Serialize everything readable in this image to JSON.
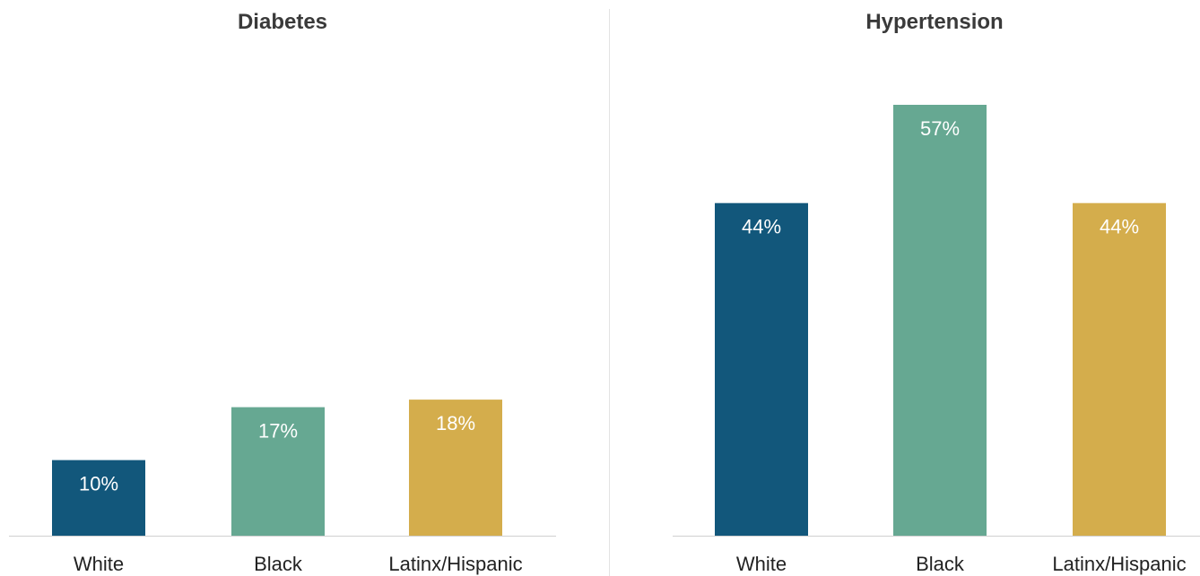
{
  "chart_data": [
    {
      "type": "bar",
      "title": "Diabetes",
      "categories": [
        "White",
        "Black",
        "Latinx/Hispanic"
      ],
      "values": [
        10,
        17,
        18
      ],
      "value_labels": [
        "10%",
        "17%",
        "18%"
      ],
      "colors": [
        "#12577b",
        "#66a892",
        "#d4ad4c"
      ],
      "ylim": [
        0,
        60
      ],
      "grid": false,
      "legend": "none"
    },
    {
      "type": "bar",
      "title": "Hypertension",
      "categories": [
        "White",
        "Black",
        "Latinx/Hispanic"
      ],
      "values": [
        44,
        57,
        44
      ],
      "value_labels": [
        "44%",
        "57%",
        "44%"
      ],
      "colors": [
        "#12577b",
        "#66a892",
        "#d4ad4c"
      ],
      "ylim": [
        0,
        60
      ],
      "grid": false,
      "legend": "none"
    }
  ]
}
